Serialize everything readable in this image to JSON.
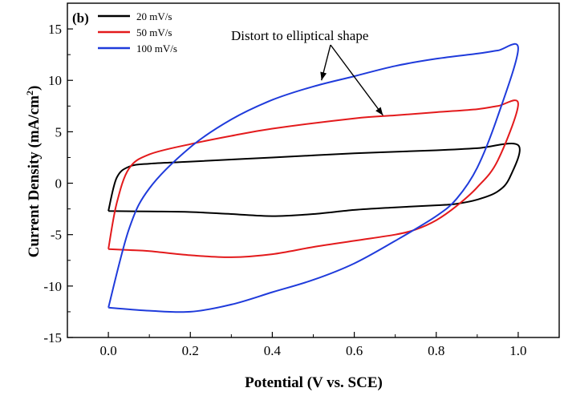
{
  "chart_data": {
    "type": "line",
    "panel_label": "(b)",
    "xlabel": "Potential (V vs. SCE)",
    "ylabel_main": "Current Density (mA/cm",
    "ylabel_sup": "2",
    "ylabel_close": ")",
    "xlim": [
      -0.1,
      1.1
    ],
    "ylim": [
      -15,
      17.5
    ],
    "xticks": [
      "0.0",
      "0.2",
      "0.4",
      "0.6",
      "0.8",
      "1.0"
    ],
    "xtick_values": [
      0.0,
      0.2,
      0.4,
      0.6,
      0.8,
      1.0
    ],
    "yticks": [
      "-15",
      "-10",
      "-5",
      "0",
      "5",
      "10",
      "15"
    ],
    "ytick_values": [
      -15,
      -10,
      -5,
      0,
      5,
      10,
      15
    ],
    "grid": false,
    "legend_position": "top-left",
    "annotation": {
      "text": "Distort to elliptical shape",
      "arrow_targets": [
        [
          0.52,
          10.0
        ],
        [
          0.67,
          6.6
        ]
      ]
    },
    "series": [
      {
        "name": "20 mV/s",
        "color": "#000000",
        "points": [
          [
            0.0,
            -2.7
          ],
          [
            0.1,
            -2.75
          ],
          [
            0.2,
            -2.8
          ],
          [
            0.3,
            -3.0
          ],
          [
            0.4,
            -3.2
          ],
          [
            0.5,
            -3.0
          ],
          [
            0.6,
            -2.6
          ],
          [
            0.7,
            -2.35
          ],
          [
            0.8,
            -2.15
          ],
          [
            0.85,
            -2.0
          ],
          [
            0.9,
            -1.6
          ],
          [
            0.95,
            -0.8
          ],
          [
            0.98,
            0.6
          ],
          [
            1.0,
            3.7
          ],
          [
            0.9,
            3.4
          ],
          [
            0.8,
            3.2
          ],
          [
            0.6,
            2.9
          ],
          [
            0.4,
            2.5
          ],
          [
            0.2,
            2.1
          ],
          [
            0.1,
            1.9
          ],
          [
            0.05,
            1.6
          ],
          [
            0.02,
            0.5
          ],
          [
            0.0,
            -2.7
          ]
        ]
      },
      {
        "name": "50 mV/s",
        "color": "#e31a1c",
        "points": [
          [
            0.0,
            -6.4
          ],
          [
            0.05,
            -6.5
          ],
          [
            0.1,
            -6.6
          ],
          [
            0.2,
            -7.0
          ],
          [
            0.3,
            -7.2
          ],
          [
            0.4,
            -6.9
          ],
          [
            0.5,
            -6.2
          ],
          [
            0.6,
            -5.6
          ],
          [
            0.7,
            -5.0
          ],
          [
            0.75,
            -4.5
          ],
          [
            0.8,
            -3.6
          ],
          [
            0.85,
            -2.2
          ],
          [
            0.9,
            -0.4
          ],
          [
            0.95,
            2.2
          ],
          [
            1.0,
            7.7
          ],
          [
            0.95,
            7.5
          ],
          [
            0.9,
            7.2
          ],
          [
            0.8,
            6.9
          ],
          [
            0.7,
            6.6
          ],
          [
            0.6,
            6.3
          ],
          [
            0.4,
            5.3
          ],
          [
            0.3,
            4.6
          ],
          [
            0.2,
            3.8
          ],
          [
            0.1,
            2.8
          ],
          [
            0.05,
            1.4
          ],
          [
            0.02,
            -2.0
          ],
          [
            0.0,
            -6.4
          ]
        ]
      },
      {
        "name": "100 mV/s",
        "color": "#1f3bdb",
        "points": [
          [
            0.0,
            -12.1
          ],
          [
            0.1,
            -12.4
          ],
          [
            0.2,
            -12.5
          ],
          [
            0.3,
            -11.8
          ],
          [
            0.4,
            -10.6
          ],
          [
            0.5,
            -9.4
          ],
          [
            0.6,
            -7.8
          ],
          [
            0.7,
            -5.6
          ],
          [
            0.8,
            -3.2
          ],
          [
            0.85,
            -1.5
          ],
          [
            0.9,
            1.5
          ],
          [
            0.95,
            6.5
          ],
          [
            1.0,
            13.1
          ],
          [
            0.95,
            12.9
          ],
          [
            0.9,
            12.6
          ],
          [
            0.8,
            12.1
          ],
          [
            0.7,
            11.4
          ],
          [
            0.6,
            10.4
          ],
          [
            0.5,
            9.4
          ],
          [
            0.4,
            8.1
          ],
          [
            0.3,
            6.2
          ],
          [
            0.2,
            3.5
          ],
          [
            0.1,
            -0.5
          ],
          [
            0.05,
            -4.5
          ],
          [
            0.0,
            -12.1
          ]
        ]
      }
    ]
  }
}
